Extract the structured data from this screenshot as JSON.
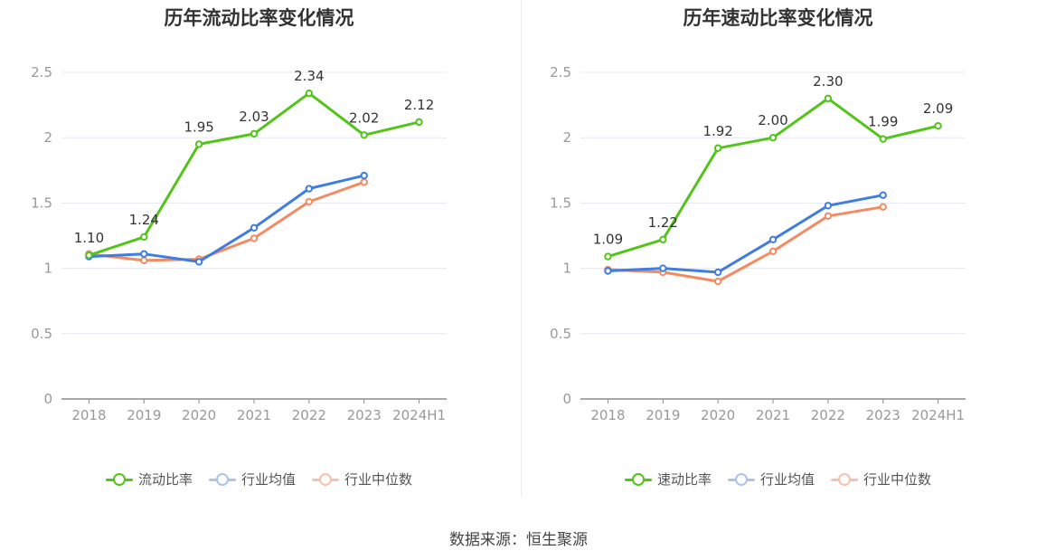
{
  "chart_data": [
    {
      "type": "line",
      "title": "历年流动比率变化情况",
      "categories": [
        "2018",
        "2019",
        "2020",
        "2021",
        "2022",
        "2023",
        "2024H1"
      ],
      "ylim": [
        0,
        2.5
      ],
      "yticks": [
        "0",
        "0.5",
        "1",
        "1.5",
        "2",
        "2.5"
      ],
      "grid": true,
      "legend_position": "bottom",
      "series": [
        {
          "name": "流动比率",
          "color": "#52c41a",
          "values": [
            1.1,
            1.24,
            1.95,
            2.03,
            2.34,
            2.02,
            2.12
          ],
          "labels": [
            "1.10",
            "1.24",
            "1.95",
            "2.03",
            "2.34",
            "2.02",
            "2.12"
          ]
        },
        {
          "name": "行业均值",
          "color": "#3f7de0",
          "values": [
            1.09,
            1.11,
            1.05,
            1.31,
            1.61,
            1.71,
            null
          ]
        },
        {
          "name": "行业中位数",
          "color": "#f28b62",
          "values": [
            1.11,
            1.06,
            1.07,
            1.23,
            1.51,
            1.66,
            null
          ]
        }
      ]
    },
    {
      "type": "line",
      "title": "历年速动比率变化情况",
      "categories": [
        "2018",
        "2019",
        "2020",
        "2021",
        "2022",
        "2023",
        "2024H1"
      ],
      "ylim": [
        0,
        2.5
      ],
      "yticks": [
        "0",
        "0.5",
        "1",
        "1.5",
        "2",
        "2.5"
      ],
      "grid": true,
      "legend_position": "bottom",
      "series": [
        {
          "name": "速动比率",
          "color": "#52c41a",
          "values": [
            1.09,
            1.22,
            1.92,
            2.0,
            2.3,
            1.99,
            2.09
          ],
          "labels": [
            "1.09",
            "1.22",
            "1.92",
            "2.00",
            "2.30",
            "1.99",
            "2.09"
          ]
        },
        {
          "name": "行业均值",
          "color": "#3f7de0",
          "values": [
            0.98,
            1.0,
            0.97,
            1.22,
            1.48,
            1.56,
            null
          ]
        },
        {
          "name": "行业中位数",
          "color": "#f28b62",
          "values": [
            0.99,
            0.97,
            0.9,
            1.13,
            1.4,
            1.47,
            null
          ]
        }
      ]
    }
  ],
  "footer": {
    "source": "数据来源：恒生聚源"
  }
}
